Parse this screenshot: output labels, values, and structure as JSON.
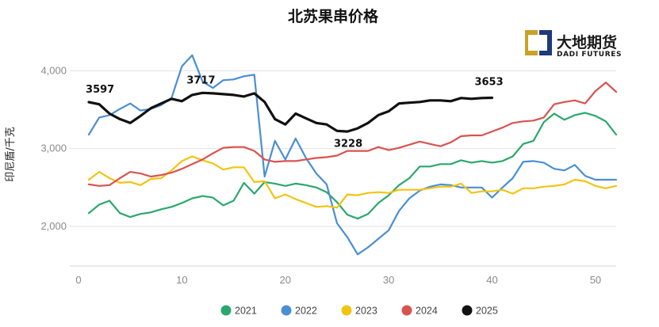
{
  "logo": {
    "name_cn": "大地期货",
    "name_en": "DADI FUTURES",
    "colors": {
      "gold": "#c9a227",
      "navy": "#1f3a7a"
    }
  },
  "chart_data": {
    "type": "line",
    "title": "北苏果串价格",
    "xlabel": "",
    "ylabel": "印尼盾/千克",
    "xlim": [
      0,
      52
    ],
    "ylim": [
      1500,
      4300
    ],
    "x_ticks": [
      0,
      10,
      20,
      30,
      40,
      50
    ],
    "x_tick_labels": [
      "0",
      "10",
      "20",
      "30",
      "40",
      "50"
    ],
    "y_ticks": [
      2000,
      3000,
      4000
    ],
    "y_tick_labels": [
      "2,000",
      "3,000",
      "4,000"
    ],
    "grid": "horizontal",
    "legend_position": "bottom",
    "series": [
      {
        "name": "2021",
        "color": "#2aa86c",
        "x": [
          1,
          2,
          3,
          4,
          5,
          6,
          7,
          8,
          9,
          10,
          11,
          12,
          13,
          14,
          15,
          16,
          17,
          18,
          19,
          20,
          21,
          22,
          23,
          24,
          25,
          26,
          27,
          28,
          29,
          30,
          31,
          32,
          33,
          34,
          35,
          36,
          37,
          38,
          39,
          40,
          41,
          42,
          43,
          44,
          45,
          46,
          47,
          48,
          49,
          50,
          51,
          52
        ],
        "values": [
          2170,
          2280,
          2330,
          2170,
          2120,
          2160,
          2180,
          2220,
          2250,
          2300,
          2360,
          2390,
          2370,
          2270,
          2330,
          2560,
          2420,
          2570,
          2550,
          2520,
          2550,
          2530,
          2500,
          2440,
          2310,
          2150,
          2100,
          2160,
          2300,
          2400,
          2530,
          2620,
          2770,
          2770,
          2800,
          2800,
          2850,
          2820,
          2840,
          2820,
          2840,
          2900,
          3060,
          3100,
          3340,
          3450,
          3370,
          3430,
          3460,
          3420,
          3350,
          3180
        ]
      },
      {
        "name": "2022",
        "color": "#4a8fd4",
        "x": [
          1,
          2,
          3,
          4,
          5,
          6,
          7,
          8,
          9,
          10,
          11,
          12,
          13,
          14,
          15,
          16,
          17,
          18,
          19,
          20,
          21,
          22,
          23,
          24,
          25,
          26,
          27,
          28,
          29,
          30,
          31,
          32,
          33,
          34,
          35,
          36,
          37,
          38,
          39,
          40,
          41,
          42,
          43,
          44,
          45,
          46,
          47,
          48,
          49,
          50,
          51,
          52
        ],
        "values": [
          3180,
          3400,
          3430,
          3510,
          3580,
          3490,
          3510,
          3560,
          3650,
          4060,
          4200,
          3860,
          3780,
          3880,
          3890,
          3930,
          3950,
          2640,
          3100,
          2860,
          3130,
          2880,
          2680,
          2540,
          2040,
          1860,
          1640,
          1730,
          1840,
          1950,
          2200,
          2360,
          2460,
          2510,
          2540,
          2530,
          2500,
          2500,
          2500,
          2370,
          2500,
          2620,
          2830,
          2840,
          2820,
          2740,
          2720,
          2790,
          2650,
          2600,
          2600,
          2600
        ]
      },
      {
        "name": "2023",
        "color": "#f2c412",
        "x": [
          1,
          2,
          3,
          4,
          5,
          6,
          7,
          8,
          9,
          10,
          11,
          12,
          13,
          14,
          15,
          16,
          17,
          18,
          19,
          20,
          21,
          22,
          23,
          24,
          25,
          26,
          27,
          28,
          29,
          30,
          31,
          32,
          33,
          34,
          35,
          36,
          37,
          38,
          39,
          40,
          41,
          42,
          43,
          44,
          45,
          46,
          47,
          48,
          49,
          50,
          51,
          52
        ],
        "values": [
          2600,
          2700,
          2620,
          2560,
          2570,
          2530,
          2610,
          2620,
          2720,
          2840,
          2900,
          2850,
          2810,
          2730,
          2760,
          2760,
          2570,
          2580,
          2360,
          2410,
          2350,
          2300,
          2250,
          2260,
          2240,
          2410,
          2400,
          2430,
          2440,
          2430,
          2470,
          2470,
          2470,
          2490,
          2510,
          2510,
          2550,
          2430,
          2450,
          2450,
          2470,
          2420,
          2490,
          2490,
          2510,
          2520,
          2540,
          2600,
          2580,
          2520,
          2490,
          2520
        ]
      },
      {
        "name": "2024",
        "color": "#d9534f",
        "x": [
          1,
          2,
          3,
          4,
          5,
          6,
          7,
          8,
          9,
          10,
          11,
          12,
          13,
          14,
          15,
          16,
          17,
          18,
          19,
          20,
          21,
          22,
          23,
          24,
          25,
          26,
          27,
          28,
          29,
          30,
          31,
          32,
          33,
          34,
          35,
          36,
          37,
          38,
          39,
          40,
          41,
          42,
          43,
          44,
          45,
          46,
          47,
          48,
          49,
          50,
          51,
          52
        ],
        "values": [
          2540,
          2520,
          2530,
          2620,
          2700,
          2680,
          2640,
          2660,
          2690,
          2740,
          2800,
          2860,
          2940,
          3010,
          3020,
          3020,
          2970,
          2860,
          2830,
          2840,
          2840,
          2860,
          2880,
          2890,
          2910,
          2970,
          2970,
          2970,
          3020,
          2980,
          3010,
          3050,
          3090,
          3060,
          3030,
          3080,
          3160,
          3170,
          3170,
          3220,
          3270,
          3330,
          3350,
          3360,
          3400,
          3570,
          3600,
          3620,
          3580,
          3740,
          3850,
          3730
        ]
      },
      {
        "name": "2025",
        "color": "#111111",
        "x": [
          1,
          2,
          3,
          4,
          5,
          6,
          7,
          8,
          9,
          10,
          11,
          12,
          13,
          14,
          15,
          16,
          17,
          18,
          19,
          20,
          21,
          22,
          23,
          24,
          25,
          26,
          27,
          28,
          29,
          30,
          31,
          32,
          33,
          34,
          35,
          36,
          37,
          38,
          39,
          40
        ],
        "values": [
          3597,
          3570,
          3450,
          3380,
          3330,
          3420,
          3520,
          3580,
          3640,
          3610,
          3690,
          3717,
          3710,
          3700,
          3690,
          3670,
          3710,
          3600,
          3380,
          3310,
          3450,
          3390,
          3330,
          3310,
          3228,
          3220,
          3260,
          3330,
          3430,
          3480,
          3580,
          3590,
          3600,
          3620,
          3620,
          3610,
          3650,
          3640,
          3650,
          3653
        ]
      }
    ],
    "annotations": [
      {
        "text": "3597",
        "x": 1,
        "y": 3597
      },
      {
        "text": "3717",
        "x": 12,
        "y": 3717
      },
      {
        "text": "3228",
        "x": 25,
        "y": 3228
      },
      {
        "text": "3653",
        "x": 40,
        "y": 3653
      }
    ]
  }
}
